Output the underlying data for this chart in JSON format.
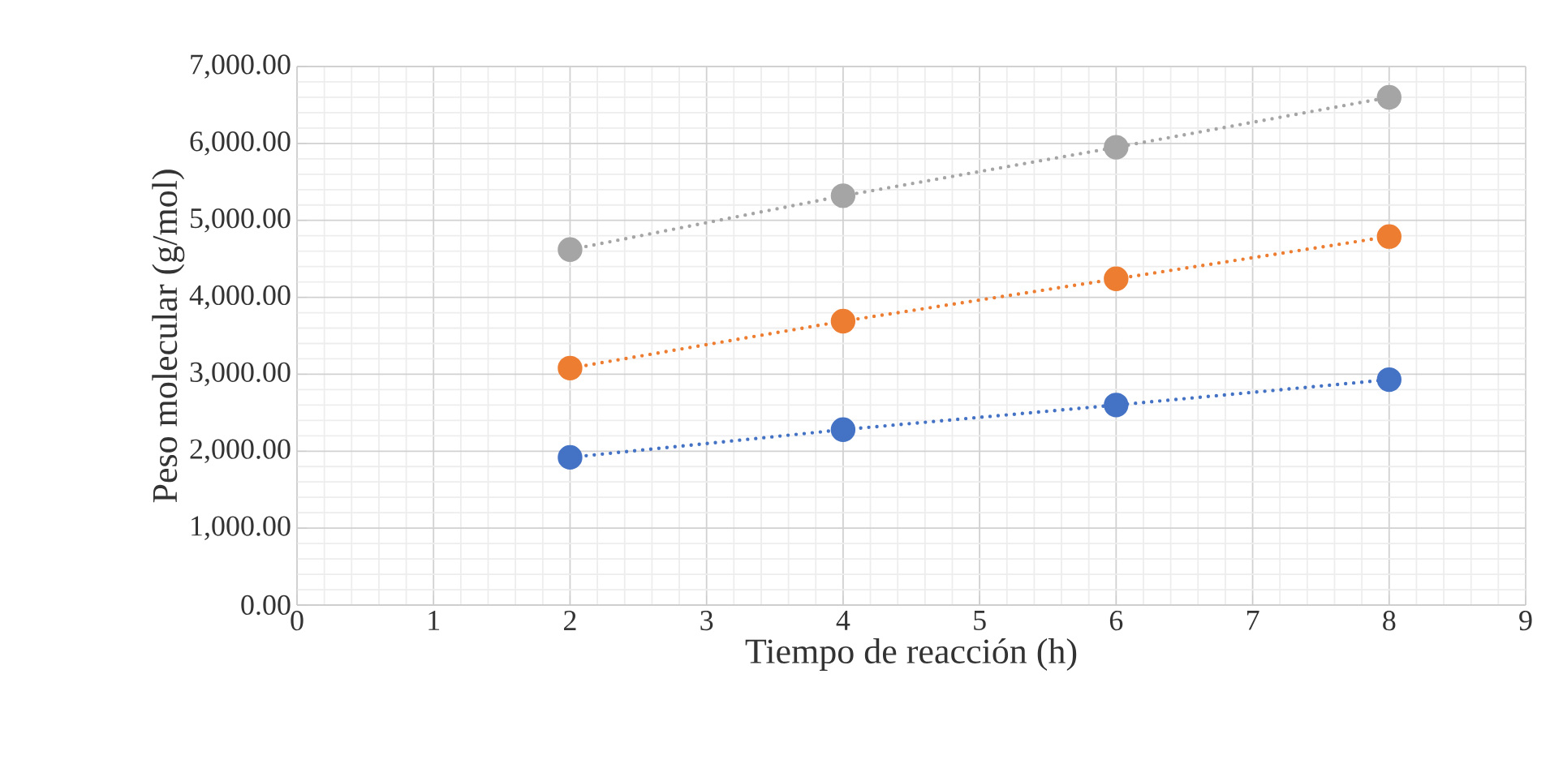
{
  "chart_data": {
    "type": "line",
    "xlabel": "Tiempo de reacción (h)",
    "ylabel": "Peso molecular (g/mol)",
    "x": [
      2,
      4,
      6,
      8
    ],
    "series": [
      {
        "color": "#4472c4",
        "values": [
          1920,
          2280,
          2600,
          2930
        ]
      },
      {
        "color": "#ed7d31",
        "values": [
          3080,
          3690,
          4240,
          4790
        ]
      },
      {
        "color": "#a5a5a5",
        "values": [
          4620,
          5320,
          5950,
          6600
        ]
      }
    ],
    "xlim": [
      0,
      9
    ],
    "xticks": [
      0,
      1,
      2,
      3,
      4,
      5,
      6,
      7,
      8,
      9
    ],
    "ylim": [
      0,
      7000
    ],
    "yticks": [
      {
        "value": 0,
        "label": "0.00"
      },
      {
        "value": 1000,
        "label": "1,000.00"
      },
      {
        "value": 2000,
        "label": "2,000.00"
      },
      {
        "value": 3000,
        "label": "3,000.00"
      },
      {
        "value": 4000,
        "label": "4,000.00"
      },
      {
        "value": 5000,
        "label": "5,000.00"
      },
      {
        "value": 6000,
        "label": "6,000.00"
      },
      {
        "value": 7000,
        "label": "7,000.00"
      }
    ],
    "grid": true,
    "marker": "circle",
    "line_style": "dotted"
  }
}
